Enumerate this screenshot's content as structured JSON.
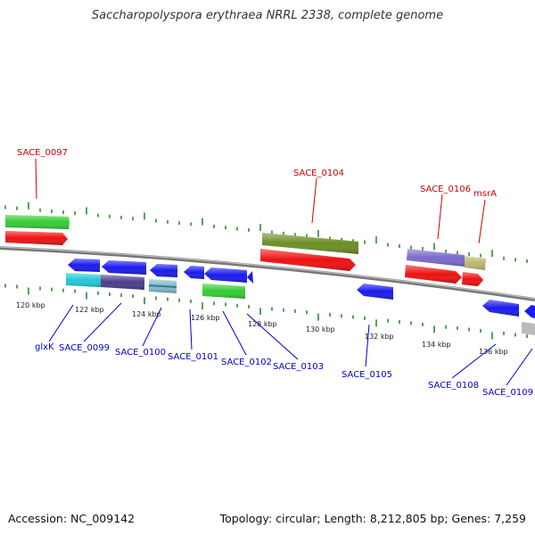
{
  "title": "Saccharopolyspora erythraea NRRL 2338, complete genome",
  "footer": {
    "accession": "Accession: NC_009142",
    "topology": "Topology: circular; Length: 8,212,805 bp; Genes: 7,259"
  },
  "colors": {
    "backbone": "#8a8a8a",
    "forward_label": "#cc0000",
    "reverse_label": "#0000cc",
    "ticks": "#2e8b2e"
  },
  "scale": {
    "ticks": [
      {
        "label": "120 kbp"
      },
      {
        "label": "122 kbp"
      },
      {
        "label": "124 kbp"
      },
      {
        "label": "126 kbp"
      },
      {
        "label": "128 kbp"
      },
      {
        "label": "130 kbp"
      },
      {
        "label": "132 kbp"
      },
      {
        "label": "134 kbp"
      },
      {
        "label": "136 kbp"
      }
    ]
  },
  "gene_labels": {
    "forward": [
      "SACE_0097",
      "SACE_0104",
      "SACE_0106",
      "msrA"
    ],
    "reverse": [
      "glxK",
      "SACE_0099",
      "SACE_0100",
      "SACE_0101",
      "SACE_0102",
      "SACE_0103",
      "SACE_0105",
      "SACE_0108",
      "SACE_0109"
    ]
  }
}
